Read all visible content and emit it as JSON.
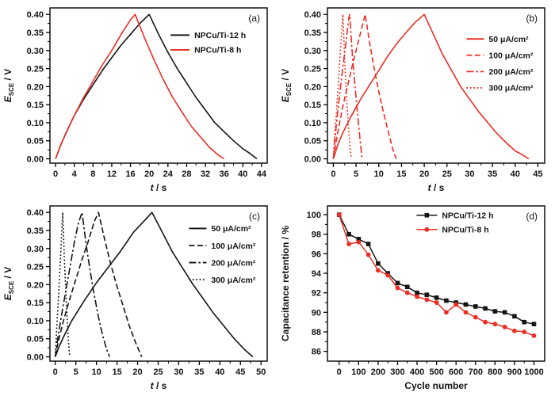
{
  "figure": {
    "background": "#ffffff",
    "colors": {
      "black": "#141414",
      "red": "#ee2d24"
    }
  },
  "chart_data": [
    {
      "panel_label": "(a)",
      "type": "line",
      "xlabel": {
        "em": "t",
        "rest": " / s"
      },
      "ylabel": {
        "em": "E",
        "sub": "SCE",
        "rest": " / V"
      },
      "xlim": [
        -1.2,
        45.2
      ],
      "ylim": [
        -0.012,
        0.418
      ],
      "xticks": [
        0,
        4,
        8,
        12,
        16,
        20,
        24,
        28,
        32,
        36,
        40,
        44
      ],
      "yticks": [
        0,
        0.05,
        0.1,
        0.15,
        0.2,
        0.25,
        0.3,
        0.35,
        0.4
      ],
      "ydecimals": 2,
      "legend": {
        "fx": 0.555,
        "fy": 0.175,
        "dy": 0.095,
        "line": 24
      },
      "series": [
        {
          "name": "NPCu/Ti-12 h",
          "color": "#141414",
          "dash": "solid",
          "marker": "none",
          "x": [
            0,
            1,
            2,
            4,
            6,
            8,
            10,
            12,
            14,
            16,
            18,
            20,
            22,
            24,
            26,
            28,
            30,
            32,
            34,
            36,
            38,
            40,
            41.5,
            43
          ],
          "y": [
            0,
            0.035,
            0.065,
            0.12,
            0.165,
            0.205,
            0.245,
            0.28,
            0.315,
            0.345,
            0.375,
            0.4,
            0.345,
            0.295,
            0.25,
            0.21,
            0.17,
            0.135,
            0.1,
            0.075,
            0.05,
            0.028,
            0.015,
            0
          ]
        },
        {
          "name": "NPCu/Ti-8 h",
          "color": "#ee2d24",
          "dash": "solid",
          "marker": "none",
          "x": [
            0,
            1,
            2,
            4,
            6,
            8,
            10,
            12,
            14,
            16,
            17,
            19,
            21,
            23,
            25,
            27,
            29,
            31,
            33,
            35,
            36
          ],
          "y": [
            0,
            0.035,
            0.065,
            0.12,
            0.17,
            0.215,
            0.26,
            0.3,
            0.345,
            0.385,
            0.4,
            0.335,
            0.275,
            0.22,
            0.17,
            0.13,
            0.09,
            0.06,
            0.03,
            0.008,
            0
          ]
        }
      ]
    },
    {
      "panel_label": "(b)",
      "type": "line",
      "xlabel": {
        "em": "t",
        "rest": " / s"
      },
      "ylabel": {
        "em": "E",
        "sub": "SCE",
        "rest": " / V"
      },
      "xlim": [
        -1.3,
        46.5
      ],
      "ylim": [
        -0.012,
        0.418
      ],
      "xticks": [
        0,
        5,
        10,
        15,
        20,
        25,
        30,
        35,
        40,
        45
      ],
      "yticks": [
        0,
        0.05,
        0.1,
        0.15,
        0.2,
        0.25,
        0.3,
        0.35,
        0.4
      ],
      "ydecimals": 2,
      "legend": {
        "fx": 0.64,
        "fy": 0.2,
        "dy": 0.105,
        "line": 22
      },
      "series": [
        {
          "name": "50 μA/cm²",
          "color": "#ee2d24",
          "dash": "solid",
          "marker": "none",
          "x": [
            0,
            1,
            2,
            4,
            6,
            8,
            10,
            12,
            14,
            16,
            18,
            20,
            22,
            24,
            26,
            28,
            30,
            32,
            34,
            36,
            38,
            40,
            41.5,
            43
          ],
          "y": [
            0,
            0.04,
            0.07,
            0.12,
            0.165,
            0.205,
            0.245,
            0.285,
            0.32,
            0.35,
            0.378,
            0.4,
            0.345,
            0.29,
            0.245,
            0.2,
            0.165,
            0.13,
            0.1,
            0.07,
            0.045,
            0.022,
            0.012,
            0
          ]
        },
        {
          "name": "100 μA/cm²",
          "color": "#ee2d24",
          "dash": "dashed",
          "marker": "none",
          "x": [
            0,
            0.5,
            1,
            2,
            3,
            4,
            5,
            6,
            7,
            8,
            9,
            10,
            11,
            12,
            13,
            13.8
          ],
          "y": [
            0,
            0.04,
            0.075,
            0.14,
            0.195,
            0.25,
            0.3,
            0.35,
            0.4,
            0.32,
            0.25,
            0.185,
            0.13,
            0.08,
            0.03,
            0
          ]
        },
        {
          "name": "200 μA/cm²",
          "color": "#ee2d24",
          "dash": "dashdot",
          "marker": "none",
          "x": [
            0,
            0.3,
            0.7,
            1.4,
            2.1,
            2.8,
            3.4,
            3.6,
            4.2,
            4.8,
            5.4,
            5.9,
            6.3
          ],
          "y": [
            0,
            0.05,
            0.1,
            0.18,
            0.255,
            0.325,
            0.39,
            0.4,
            0.285,
            0.195,
            0.115,
            0.05,
            0
          ]
        },
        {
          "name": "300 μA/cm²",
          "color": "#ee2d24",
          "dash": "dotted",
          "marker": "none",
          "x": [
            0,
            0.2,
            0.5,
            0.9,
            1.3,
            1.7,
            2.1,
            2.5,
            2.9,
            3.3,
            3.7,
            4.0
          ],
          "y": [
            0,
            0.045,
            0.1,
            0.17,
            0.25,
            0.33,
            0.4,
            0.27,
            0.17,
            0.09,
            0.025,
            0
          ]
        }
      ]
    },
    {
      "panel_label": "(c)",
      "type": "line",
      "xlabel": {
        "em": "t",
        "rest": " / s"
      },
      "ylabel": {
        "em": "E",
        "sub": "SCE",
        "rest": " / V"
      },
      "xlim": [
        -1.3,
        51.5
      ],
      "ylim": [
        -0.012,
        0.418
      ],
      "xticks": [
        0,
        5,
        10,
        15,
        20,
        25,
        30,
        35,
        40,
        45,
        50
      ],
      "yticks": [
        0,
        0.05,
        0.1,
        0.15,
        0.2,
        0.25,
        0.3,
        0.35,
        0.4
      ],
      "ydecimals": 2,
      "legend": {
        "fx": 0.64,
        "fy": 0.145,
        "dy": 0.11,
        "line": 22
      },
      "series": [
        {
          "name": "50 μA/cm²",
          "color": "#141414",
          "dash": "solid",
          "marker": "none",
          "x": [
            0,
            1,
            2,
            4,
            7,
            10,
            13,
            16,
            19,
            21.5,
            23.5,
            26,
            28.5,
            31,
            33.5,
            36,
            38.5,
            41,
            43.5,
            46,
            48
          ],
          "y": [
            0,
            0.03,
            0.055,
            0.1,
            0.155,
            0.205,
            0.25,
            0.295,
            0.345,
            0.375,
            0.4,
            0.345,
            0.29,
            0.245,
            0.2,
            0.16,
            0.12,
            0.085,
            0.05,
            0.02,
            0
          ]
        },
        {
          "name": "100 μA/cm²",
          "color": "#141414",
          "dash": "dashed",
          "marker": "none",
          "x": [
            0,
            0.5,
            1,
            2,
            3.5,
            5,
            6.5,
            8,
            9.5,
            10.5,
            12,
            13.5,
            15,
            16.5,
            18,
            19.5,
            21
          ],
          "y": [
            0,
            0.03,
            0.055,
            0.1,
            0.16,
            0.215,
            0.27,
            0.32,
            0.375,
            0.4,
            0.325,
            0.255,
            0.195,
            0.14,
            0.085,
            0.04,
            0
          ]
        },
        {
          "name": "200 μA/cm²",
          "color": "#141414",
          "dash": "dashdot",
          "marker": "none",
          "x": [
            0,
            0.4,
            0.8,
            1.6,
            2.6,
            3.6,
            4.6,
            5.6,
            6.5,
            7.5,
            8.5,
            9.5,
            10.5,
            11.5,
            12.5,
            13.2
          ],
          "y": [
            0,
            0.035,
            0.065,
            0.12,
            0.185,
            0.25,
            0.315,
            0.37,
            0.4,
            0.31,
            0.235,
            0.17,
            0.11,
            0.06,
            0.02,
            0
          ]
        },
        {
          "name": "300 μA/cm²",
          "color": "#141414",
          "dash": "dotted",
          "marker": "none",
          "x": [
            0,
            0.2,
            0.4,
            0.8,
            1.2,
            1.5,
            1.8,
            2.2,
            2.6,
            3.0,
            3.3,
            3.5
          ],
          "y": [
            0,
            0.045,
            0.09,
            0.17,
            0.26,
            0.33,
            0.4,
            0.27,
            0.17,
            0.08,
            0.025,
            0
          ]
        }
      ]
    },
    {
      "panel_label": "(d)",
      "type": "scatter-line",
      "xlabel": {
        "rest": "Cycle number"
      },
      "ylabel": {
        "rest": "Capacitance retention / %"
      },
      "xlim": [
        -60,
        1055
      ],
      "ylim": [
        85,
        100.9
      ],
      "xticks": [
        0,
        100,
        200,
        300,
        400,
        500,
        600,
        700,
        800,
        900,
        1000
      ],
      "yticks": [
        86,
        88,
        90,
        92,
        94,
        96,
        98,
        100
      ],
      "ydecimals": 0,
      "legend": {
        "fx": 0.41,
        "fy": 0.06,
        "dy": 0.092,
        "line": 26
      },
      "series": [
        {
          "name": "NPCu/Ti-12 h",
          "color": "#141414",
          "dash": "solid",
          "marker": "square",
          "width": 1.5,
          "x": [
            0,
            50,
            100,
            150,
            200,
            250,
            300,
            350,
            400,
            450,
            500,
            550,
            600,
            650,
            700,
            750,
            800,
            850,
            900,
            950,
            1000
          ],
          "y": [
            100,
            98.0,
            97.5,
            97.0,
            95.0,
            94.0,
            93.0,
            92.6,
            92.0,
            91.8,
            91.5,
            91.2,
            91.0,
            90.8,
            90.6,
            90.4,
            90.1,
            90.0,
            89.6,
            89.0,
            88.8
          ]
        },
        {
          "name": "NPCu/Ti-8 h",
          "color": "#ee2d24",
          "dash": "solid",
          "marker": "circle",
          "width": 1.5,
          "x": [
            0,
            50,
            100,
            150,
            200,
            250,
            300,
            350,
            400,
            450,
            500,
            550,
            600,
            650,
            700,
            750,
            800,
            850,
            900,
            950,
            1000
          ],
          "y": [
            100,
            97.0,
            97.2,
            95.9,
            94.3,
            93.8,
            92.5,
            92.0,
            91.6,
            91.3,
            91.0,
            90.0,
            90.8,
            90.0,
            89.5,
            89.0,
            88.8,
            88.5,
            88.1,
            88.0,
            87.6
          ]
        }
      ]
    }
  ]
}
